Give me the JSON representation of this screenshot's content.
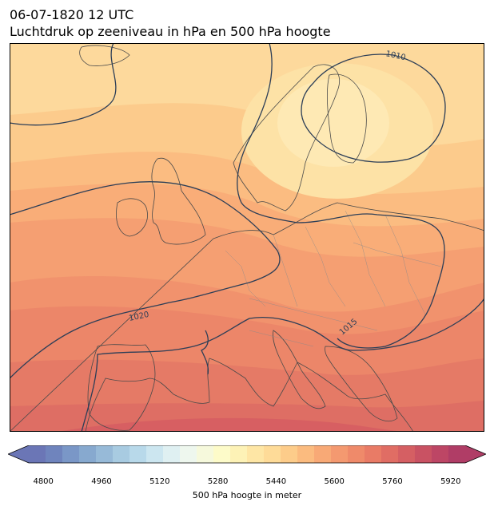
{
  "title": {
    "line1": "06-07-1820 12 UTC",
    "line2": "Luchtdruk op zeeniveau in hPa en 500 hPa hoogte"
  },
  "isobar_labels": [
    "1010",
    "1015",
    "1020"
  ],
  "colorbar": {
    "label": "500 hPa hoogte in meter",
    "ticks": [
      "4800",
      "4960",
      "5120",
      "5280",
      "5440",
      "5600",
      "5760",
      "5920"
    ],
    "min": 4760,
    "max": 5960,
    "step": 40,
    "colors": [
      "#6b76b6",
      "#6f84bd",
      "#7a97c7",
      "#87a9cf",
      "#97bad8",
      "#a8cbe1",
      "#b8d9ea",
      "#cce6f0",
      "#dff0f2",
      "#eef7ee",
      "#f6f9dc",
      "#fdfbc9",
      "#fdf2b6",
      "#fee6a5",
      "#fedb98",
      "#fdcc8a",
      "#fbbb7f",
      "#f8a976",
      "#f49970",
      "#ef8a6a",
      "#e97b66",
      "#e06d64",
      "#d55f63",
      "#c95263",
      "#bd4665",
      "#b03d66"
    ]
  },
  "colors": {
    "contour": "#2c3e57",
    "coast": "#4a4a4a",
    "border": "#8a8a8a"
  }
}
